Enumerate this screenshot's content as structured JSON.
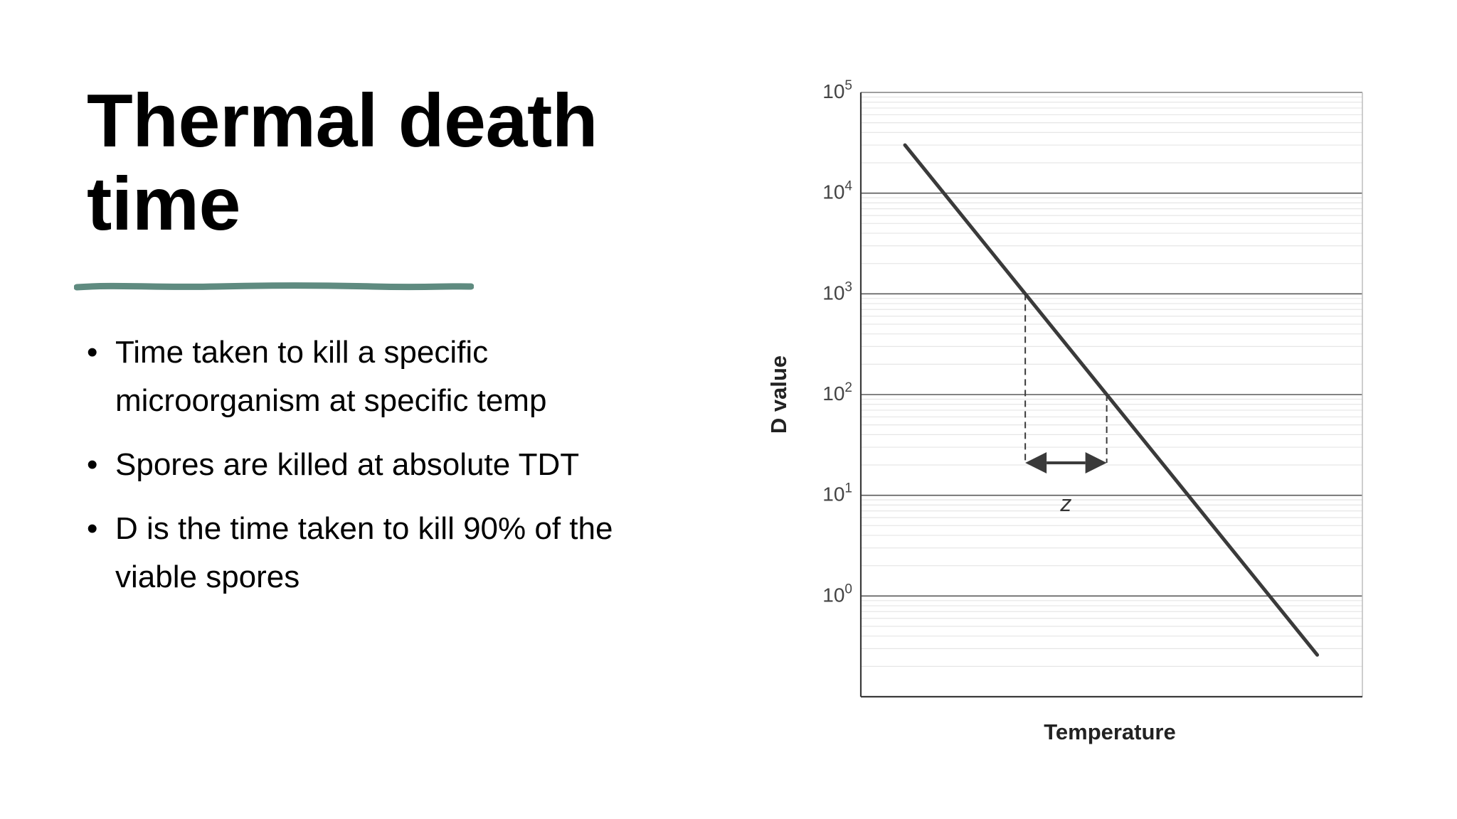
{
  "slide": {
    "title": "Thermal death time",
    "accent_color": "#5f8b80",
    "bullets": [
      "Time taken to kill a specific microorganism at specific temp",
      "Spores are killed at absolute TDT",
      "D is the time taken to kill 90% of the viable spores"
    ],
    "bullet_glyph": "•"
  },
  "chart_data": {
    "type": "line",
    "xlabel": "Temperature",
    "ylabel": "D value",
    "yscale": "log",
    "ylim": [
      0.1,
      100000
    ],
    "y_ticks": [
      {
        "value": 1,
        "base": "10",
        "exp": "0"
      },
      {
        "value": 10,
        "base": "10",
        "exp": "1"
      },
      {
        "value": 100,
        "base": "10",
        "exp": "2"
      },
      {
        "value": 1000,
        "base": "10",
        "exp": "3"
      },
      {
        "value": 10000,
        "base": "10",
        "exp": "4"
      },
      {
        "value": 100000,
        "base": "10",
        "exp": "5"
      }
    ],
    "x_ticks": [],
    "grid": true,
    "line_color": "#3a3a3a",
    "series": [
      {
        "points": [
          {
            "x": 0.088,
            "y": 30000
          },
          {
            "x": 0.91,
            "y": 0.26
          }
        ]
      }
    ],
    "annotations": [
      {
        "type": "double-arrow-interval",
        "label": "z",
        "from_y": 1000,
        "to_y": 100,
        "arrow_at_y": 21
      }
    ]
  }
}
